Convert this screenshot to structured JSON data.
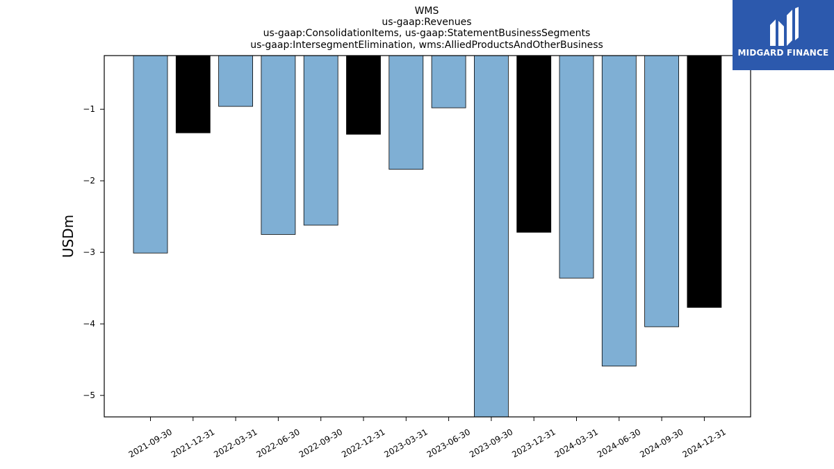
{
  "logo": {
    "text": "MIDGARD FINANCE"
  },
  "chart_data": {
    "type": "bar",
    "title_lines": [
      "WMS",
      "us-gaap:Revenues",
      "us-gaap:ConsolidationItems, us-gaap:StatementBusinessSegments",
      "us-gaap:IntersegmentElimination, wms:AlliedProductsAndOtherBusiness"
    ],
    "xlabel": "",
    "ylabel": "USDm",
    "ylim": [
      -5.3,
      -0.25
    ],
    "yticks": [
      -1,
      -2,
      -3,
      -4,
      -5
    ],
    "ytick_labels": [
      "−1",
      "−2",
      "−3",
      "−4",
      "−5"
    ],
    "categories": [
      "2021-09-30",
      "2021-12-31",
      "2022-03-31",
      "2022-06-30",
      "2022-09-30",
      "2022-12-31",
      "2023-03-31",
      "2023-06-30",
      "2023-09-30",
      "2023-12-31",
      "2024-03-31",
      "2024-06-30",
      "2024-09-30",
      "2024-12-31"
    ],
    "values": [
      -3.01,
      -1.33,
      -0.96,
      -2.75,
      -2.62,
      -1.35,
      -1.84,
      -0.98,
      -5.3,
      -2.72,
      -3.36,
      -4.59,
      -4.04,
      -3.77
    ],
    "bar_colors": [
      "#7fafd4",
      "#000000",
      "#7fafd4",
      "#7fafd4",
      "#7fafd4",
      "#000000",
      "#7fafd4",
      "#7fafd4",
      "#7fafd4",
      "#000000",
      "#7fafd4",
      "#7fafd4",
      "#7fafd4",
      "#000000"
    ],
    "grid": false,
    "legend": "none"
  }
}
